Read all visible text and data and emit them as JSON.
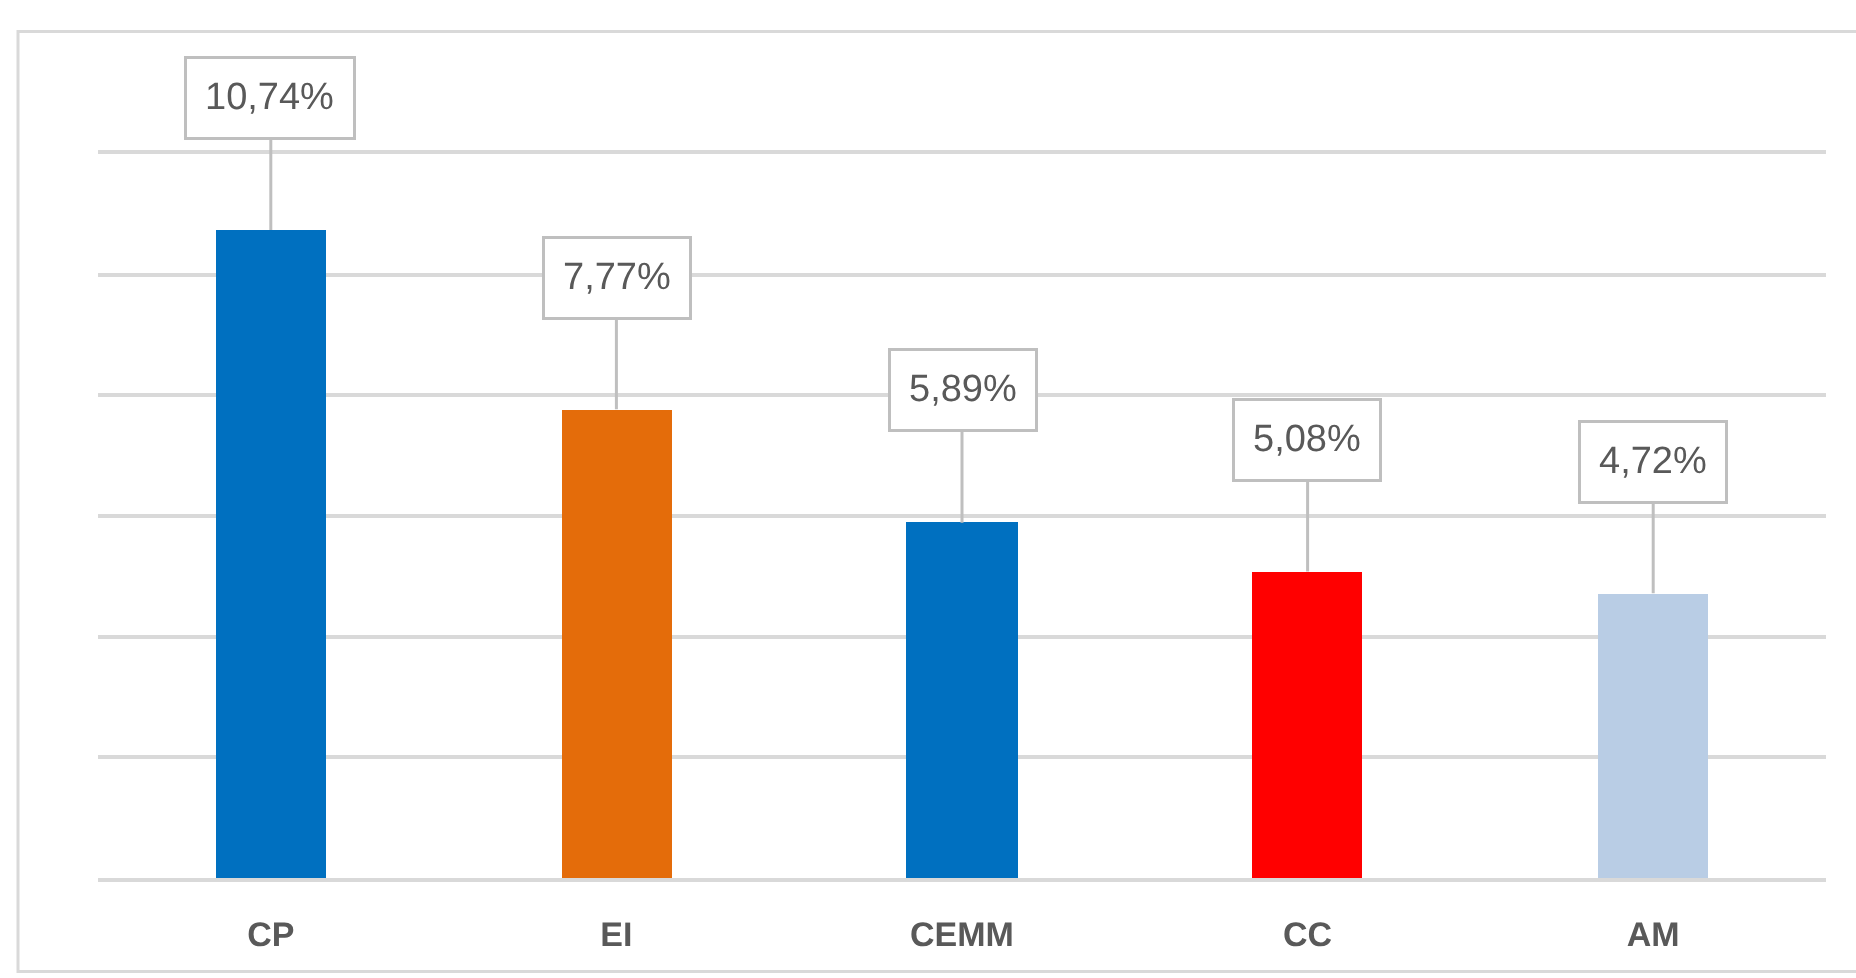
{
  "chart_data": {
    "type": "bar",
    "categories": [
      "CP",
      "EI",
      "CEMM",
      "CC",
      "AM"
    ],
    "values": [
      10.74,
      7.77,
      5.89,
      5.08,
      4.72
    ],
    "colors": [
      "#0070c0",
      "#e46c0a",
      "#0070c0",
      "#ff0000",
      "#b9cde5"
    ],
    "value_labels": [
      "10,74%",
      "7,77%",
      "5,89%",
      "5,08%",
      "4,72%"
    ],
    "ylim": [
      0,
      12
    ],
    "yticks": [
      {
        "value": 0,
        "label": null
      },
      {
        "value": 2,
        "label": null
      },
      {
        "value": 4,
        "label": null
      },
      {
        "value": 6,
        "label": null
      },
      {
        "value": 8,
        "label": null
      },
      {
        "value": 10,
        "label": null
      },
      {
        "value": 12,
        "label": null
      }
    ],
    "grid": "y",
    "tick_labels": "x"
  }
}
